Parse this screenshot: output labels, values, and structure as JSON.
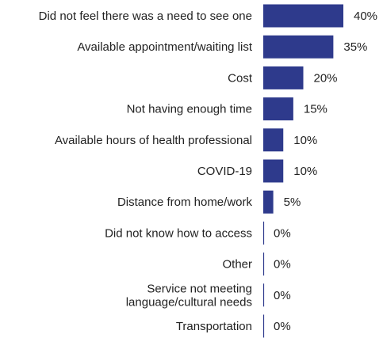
{
  "chart_data": {
    "type": "bar",
    "orientation": "horizontal",
    "title": "",
    "xlabel": "",
    "ylabel": "",
    "categories": [
      [
        "Did not feel there was a need to see one"
      ],
      [
        "Available appointment/waiting list"
      ],
      [
        "Cost"
      ],
      [
        "Not having enough time"
      ],
      [
        "Available hours of health professional"
      ],
      [
        "COVID-19"
      ],
      [
        "Distance from home/work"
      ],
      [
        "Did not know how to access"
      ],
      [
        "Other"
      ],
      [
        "Service not meeting",
        "language/cultural needs"
      ],
      [
        "Transportation"
      ]
    ],
    "values": [
      40,
      35,
      20,
      15,
      10,
      10,
      5,
      0,
      0,
      0,
      0
    ],
    "value_labels": [
      "40%",
      "35%",
      "20%",
      "15%",
      "10%",
      "10%",
      "5%",
      "0%",
      "0%",
      "0%",
      "0%"
    ],
    "xlim": [
      0,
      40
    ],
    "grid": false,
    "legend": "none",
    "colors": {
      "bar": "#2e3a8c",
      "text": "#222222"
    }
  }
}
